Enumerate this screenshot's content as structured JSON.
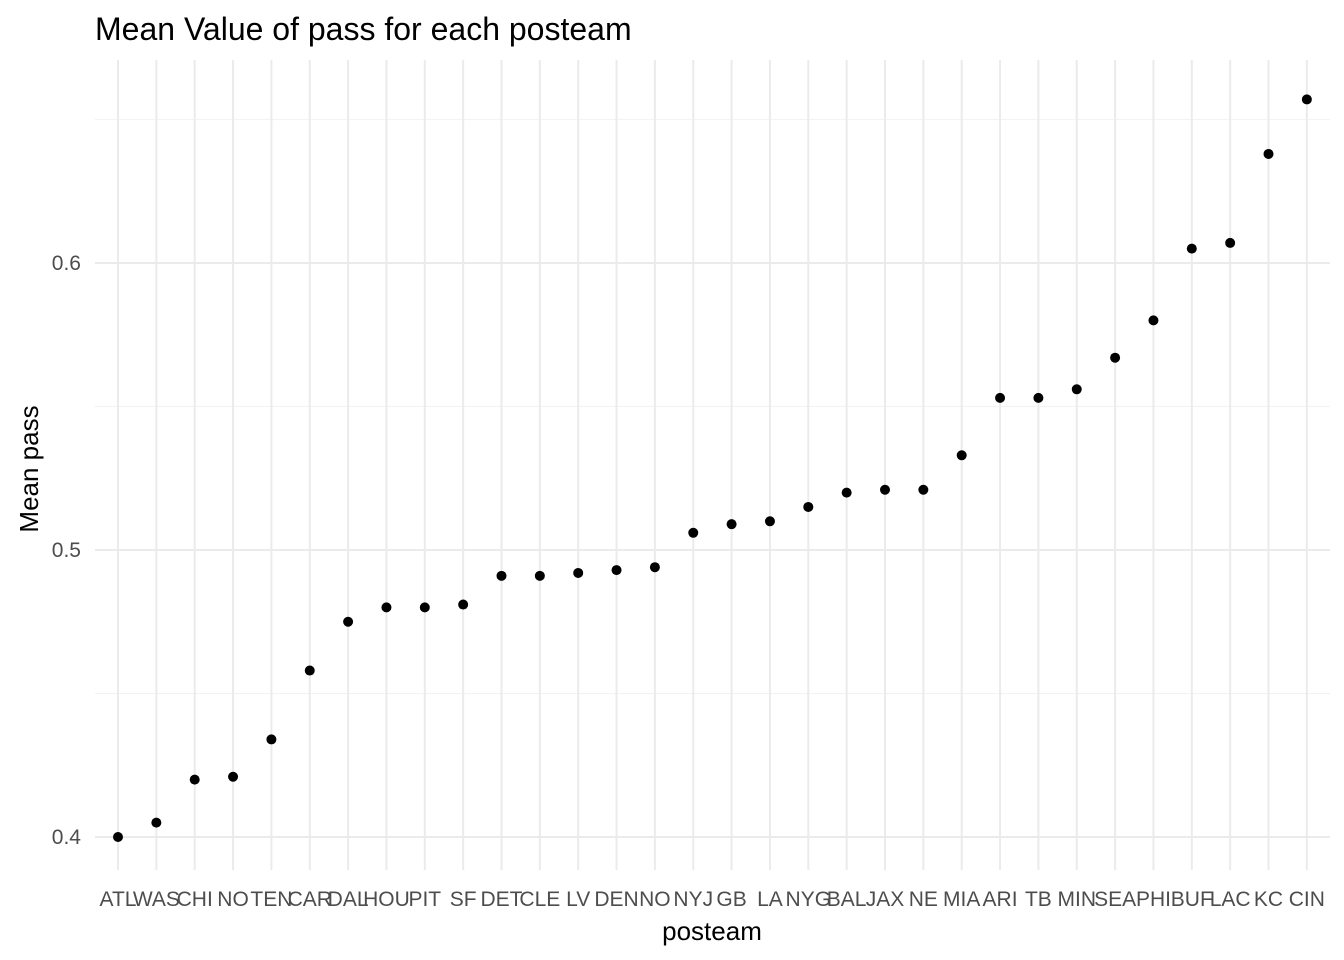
{
  "chart_data": {
    "type": "scatter",
    "title": "Mean Value of pass for each posteam",
    "xlabel": "posteam",
    "ylabel": "Mean pass",
    "ylim": [
      0.39,
      0.66
    ],
    "yticks": [
      0.4,
      0.5,
      0.6
    ],
    "ytick_labels": [
      "0.4",
      "0.5",
      "0.6"
    ],
    "grid": true,
    "categories": [
      "ATL",
      "WAS",
      "CHI",
      "NO",
      "TEN",
      "CAR",
      "DAL",
      "HOU",
      "PIT",
      "SF",
      "DET",
      "CLE",
      "LV",
      "DEN",
      "NO",
      "NYJ",
      "GB",
      "LA",
      "NYG",
      "BAL",
      "JAX",
      "NE",
      "MIA",
      "ARI",
      "TB",
      "MIN",
      "SEA",
      "PHI",
      "BUF",
      "LAC",
      "KC",
      "CIN"
    ],
    "values": [
      0.4,
      0.405,
      0.42,
      0.421,
      0.434,
      0.458,
      0.475,
      0.48,
      0.48,
      0.481,
      0.491,
      0.491,
      0.492,
      0.493,
      0.494,
      0.506,
      0.509,
      0.51,
      0.515,
      0.52,
      0.521,
      0.521,
      0.533,
      0.553,
      0.553,
      0.556,
      0.567,
      0.58,
      0.605,
      0.607,
      0.638,
      0.657
    ],
    "point_color": "#000000",
    "grid_color": "#ebebeb"
  }
}
